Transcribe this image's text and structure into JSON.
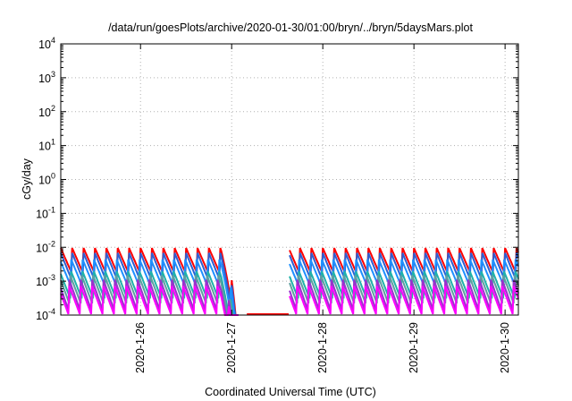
{
  "chart_data": {
    "type": "line",
    "title": "/data/run/goesPlots/archive/2020-01-30/01:00/bryn/../bryn/5daysMars.plot",
    "xlabel": "Coordinated Universal Time (UTC)",
    "ylabel": "cGy/day",
    "y_scale": "log",
    "ylim": [
      0.0001,
      10000
    ],
    "xlim": [
      "2020-01-25 03:00",
      "2020-01-30 03:30"
    ],
    "grid": true,
    "y_ticks": [
      {
        "value": 0.0001,
        "base": "10",
        "exp": "-4"
      },
      {
        "value": 0.001,
        "base": "10",
        "exp": "-3"
      },
      {
        "value": 0.01,
        "base": "10",
        "exp": "-2"
      },
      {
        "value": 0.1,
        "base": "10",
        "exp": "-1"
      },
      {
        "value": 1,
        "base": "10",
        "exp": "0"
      },
      {
        "value": 10,
        "base": "10",
        "exp": "1"
      },
      {
        "value": 100,
        "base": "10",
        "exp": "2"
      },
      {
        "value": 1000,
        "base": "10",
        "exp": "3"
      },
      {
        "value": 10000,
        "base": "10",
        "exp": "4"
      }
    ],
    "x_ticks": [
      "2020-1-26",
      "2020-1-27",
      "2020-1-28",
      "2020-1-29",
      "2020-1-30"
    ],
    "data_gap": [
      "2020-01-27 02:00",
      "2020-01-27 15:00"
    ],
    "sawtooth_period_hours": 3,
    "series": [
      {
        "color": "#ff0000",
        "peak": 0.0095,
        "trough": 0.0016
      },
      {
        "color": "#2f5fd0",
        "peak": 0.0075,
        "trough": 0.0011
      },
      {
        "color": "#1e90ff",
        "peak": 0.0045,
        "trough": 0.0007
      },
      {
        "color": "#20b2aa",
        "peak": 0.0022,
        "trough": 0.0003
      },
      {
        "color": "#5f9ea0",
        "peak": 0.0016,
        "trough": 0.0002
      },
      {
        "color": "#9932cc",
        "peak": 0.0011,
        "trough": 0.00012
      },
      {
        "color": "#ff00ff",
        "peak": 0.0008,
        "trough": 0.0001
      }
    ]
  }
}
